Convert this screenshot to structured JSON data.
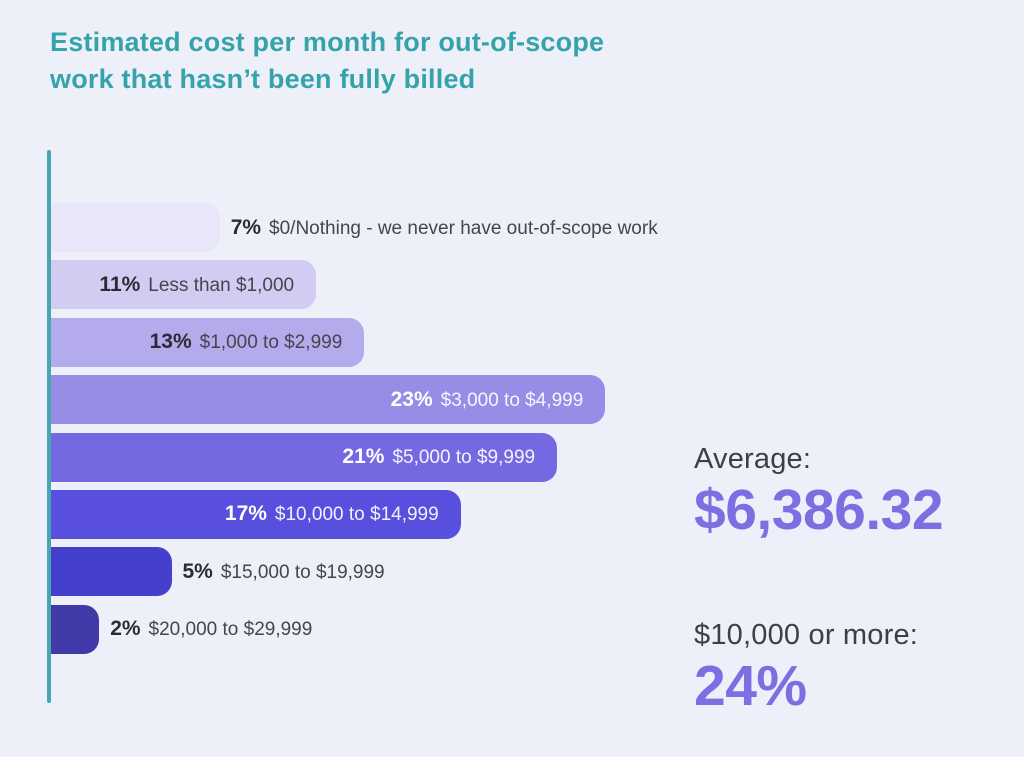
{
  "title": {
    "lines": [
      "Estimated cost per month for out-of-scope",
      "work that hasn’t been fully billed"
    ],
    "full": "Estimated cost per month for out-of-scope work that hasn’t been fully billed"
  },
  "colors": {
    "background": "#eef0f9",
    "title_teal": "#36a3ab",
    "axis_teal": "#4aa6ae",
    "stat_value_purple": "#7b6fe2",
    "pct_text_dark": "#2b2b33",
    "desc_text_gray": "#45454e"
  },
  "chart_data": {
    "type": "bar",
    "orientation": "horizontal",
    "title": "Estimated cost per month for out-of-scope work that hasn’t been fully billed",
    "unit": "%",
    "categories": [
      "$0/Nothing - we never have out-of-scope work",
      "Less than $1,000",
      "$1,000 to $2,999",
      "$3,000 to $4,999",
      "$5,000 to $9,999",
      "$10,000 to $14,999",
      "$15,000 to $19,999",
      "$20,000 to $29,999"
    ],
    "values": [
      7,
      11,
      13,
      23,
      21,
      17,
      5,
      2
    ],
    "bar_colors": [
      "#e9e6f9",
      "#d2ccf3",
      "#b3abec",
      "#968de7",
      "#7569e2",
      "#584fdf",
      "#453fcd",
      "#403aa8"
    ],
    "label_inside": [
      false,
      true,
      true,
      true,
      true,
      true,
      false,
      false
    ],
    "label_light": [
      false,
      false,
      false,
      true,
      true,
      true,
      false,
      false
    ],
    "xlim": [
      0,
      24
    ],
    "grid": false,
    "legend": false,
    "annotations": [
      {
        "label": "Average:",
        "value": "$6,386.32"
      },
      {
        "label": "$10,000 or more:",
        "value": "24%"
      }
    ]
  }
}
